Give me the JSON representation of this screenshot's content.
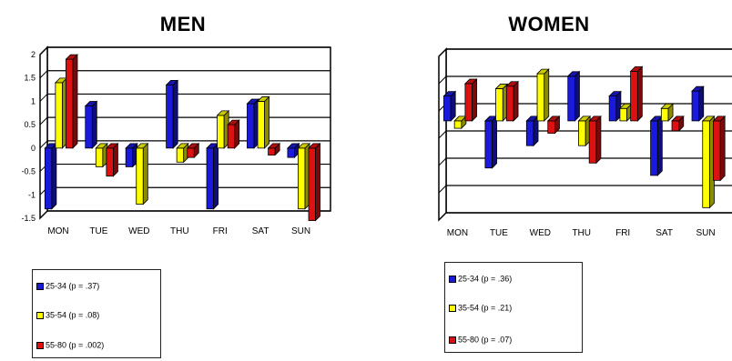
{
  "chart_data": [
    {
      "type": "bar",
      "title": "MEN",
      "categories": [
        "MON",
        "TUE",
        "WED",
        "THU",
        "FRI",
        "SAT",
        "SUN"
      ],
      "y_tick_labels": [
        "2",
        "1.5",
        "1",
        "0.5",
        "0",
        "-0.5",
        "-1",
        "-1.5"
      ],
      "ylim": [
        -1.5,
        2
      ],
      "grid": true,
      "series": [
        {
          "name": "25-34 (p = .37)",
          "color": "#1a1adc",
          "values": [
            -1.3,
            0.9,
            -0.4,
            1.35,
            -1.3,
            0.95,
            -0.2
          ]
        },
        {
          "name": "35-54 (p = .08)",
          "color": "#ffff00",
          "values": [
            1.4,
            -0.4,
            -1.2,
            -0.3,
            0.7,
            1.0,
            -1.3
          ]
        },
        {
          "name": "55-80 (p = .002)",
          "color": "#dd1111",
          "values": [
            1.9,
            -0.6,
            0.0,
            -0.2,
            0.5,
            -0.15,
            -1.55
          ]
        }
      ]
    },
    {
      "type": "bar",
      "title": "WOMEN",
      "categories": [
        "MON",
        "TUE",
        "WED",
        "THU",
        "FRI",
        "SAT",
        "SUN"
      ],
      "ylim": [
        -2,
        1.3
      ],
      "grid": true,
      "series": [
        {
          "name": "25-34 (p = .36)",
          "color": "#1a1adc",
          "values": [
            0.5,
            -0.95,
            -0.5,
            0.9,
            0.5,
            -1.1,
            0.6
          ]
        },
        {
          "name": "35-54 (p = .21)",
          "color": "#ffff00",
          "values": [
            -0.15,
            0.65,
            0.95,
            -0.5,
            0.25,
            0.25,
            -1.75
          ]
        },
        {
          "name": "55-80 (p = .07)",
          "color": "#dd1111",
          "values": [
            0.75,
            0.7,
            -0.25,
            -0.85,
            1.0,
            -0.2,
            -1.2
          ]
        }
      ]
    }
  ]
}
